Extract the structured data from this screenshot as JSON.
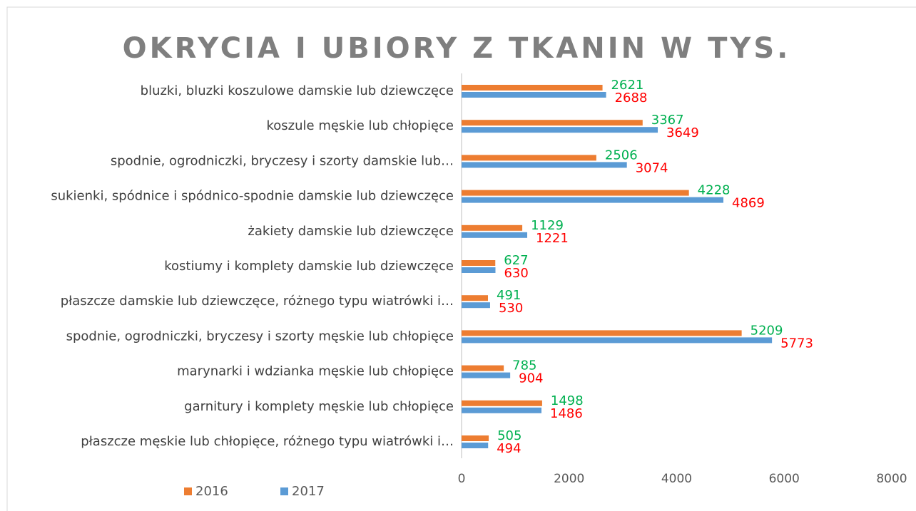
{
  "chart_data": {
    "type": "barh",
    "title": "OKRYCIA I UBIORY Z TKANIN W TYS.",
    "categories": [
      "bluzki,  bluzki koszulowe damskie lub dziewczęce",
      "koszule męskie lub chłopięce",
      "spodnie, ogrodniczki, bryczesy i szorty damskie lub…",
      "sukienki, spódnice i spódnico-spodnie damskie lub dziewczęce",
      "żakiety  damskie lub dziewczęce",
      "kostiumy i komplety damskie lub  dziewczęce",
      "płaszcze damskie lub dziewczęce, różnego typu wiatrówki  i…",
      "spodnie, ogrodniczki, bryczesy i szorty męskie lub  chłopięce",
      "marynarki i wdzianka  męskie lub chłopięce",
      "garnitury  i komplety  męskie lub chłopięce",
      "płaszcze męskie lub chłopięce, różnego typu wiatrówki  i…"
    ],
    "series": [
      {
        "name": "2016",
        "color": "#ED7D31",
        "label_color": "#00B050",
        "values": [
          2621,
          3367,
          2506,
          4228,
          1129,
          627,
          491,
          5209,
          785,
          1498,
          505
        ]
      },
      {
        "name": "2017",
        "color": "#5B9BD5",
        "label_color": "#FF0000",
        "values": [
          2688,
          3649,
          3074,
          4869,
          1221,
          630,
          530,
          5773,
          904,
          1486,
          494
        ]
      }
    ],
    "xlim": [
      0,
      8000
    ],
    "xticks": [
      0,
      2000,
      4000,
      6000,
      8000
    ],
    "grid": false,
    "legend": "bottom-left"
  }
}
